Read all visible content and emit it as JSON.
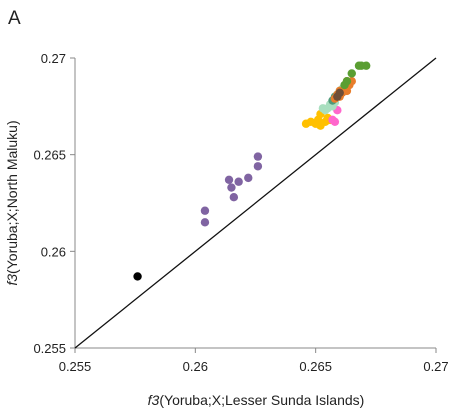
{
  "chart_data": {
    "type": "scatter",
    "panel_label": "A",
    "xlabel": {
      "italic_prefix": "f3",
      "text": "(Yoruba;X;Lesser Sunda Islands)"
    },
    "ylabel": {
      "italic_prefix": "f3",
      "text": "(Yoruba;X;North Maluku)"
    },
    "xlim": [
      0.255,
      0.27
    ],
    "ylim": [
      0.255,
      0.27
    ],
    "x_ticks": [
      "0.255",
      "0.26",
      "0.265",
      "0.27"
    ],
    "y_ticks": [
      "0.255",
      "0.26",
      "0.265",
      "0.27"
    ],
    "diagonal": {
      "from": [
        0.255,
        0.255
      ],
      "to": [
        0.27,
        0.27
      ],
      "color": "#111111"
    },
    "grid": false,
    "legend": "none",
    "series": [
      {
        "color": "#000000",
        "points": [
          [
            0.2576,
            0.2587
          ]
        ]
      },
      {
        "color": "#8064a2",
        "points": [
          [
            0.2604,
            0.2621
          ],
          [
            0.2604,
            0.2615
          ],
          [
            0.2614,
            0.2637
          ],
          [
            0.2615,
            0.2633
          ],
          [
            0.2616,
            0.2628
          ],
          [
            0.2618,
            0.2636
          ],
          [
            0.2622,
            0.2638
          ],
          [
            0.2626,
            0.2644
          ],
          [
            0.2626,
            0.2649
          ]
        ]
      },
      {
        "color": "#ffc000",
        "points": [
          [
            0.2646,
            0.2666
          ],
          [
            0.2648,
            0.2667
          ],
          [
            0.265,
            0.2666
          ],
          [
            0.2651,
            0.2668
          ],
          [
            0.2652,
            0.2665
          ],
          [
            0.2654,
            0.2667
          ],
          [
            0.2652,
            0.2671
          ],
          [
            0.2655,
            0.2669
          ],
          [
            0.2656,
            0.2668
          ]
        ]
      },
      {
        "color": "#ff66cc",
        "points": [
          [
            0.2657,
            0.2668
          ],
          [
            0.2658,
            0.2667
          ],
          [
            0.2659,
            0.2673
          ]
        ]
      },
      {
        "color": "#a9dfbf",
        "points": [
          [
            0.2653,
            0.2674
          ],
          [
            0.2655,
            0.2674
          ],
          [
            0.2654,
            0.2673
          ],
          [
            0.2656,
            0.2676
          ],
          [
            0.2657,
            0.2675
          ],
          [
            0.2658,
            0.2677
          ],
          [
            0.2659,
            0.2681
          ],
          [
            0.266,
            0.2683
          ],
          [
            0.2661,
            0.2684
          ]
        ]
      },
      {
        "color": "#4f9a7a",
        "points": [
          [
            0.2657,
            0.2678
          ],
          [
            0.2658,
            0.268
          ],
          [
            0.2659,
            0.2681
          ],
          [
            0.266,
            0.2681
          ]
        ]
      },
      {
        "color": "#e87d2b",
        "points": [
          [
            0.2658,
            0.2679
          ],
          [
            0.2659,
            0.2681
          ],
          [
            0.266,
            0.268
          ],
          [
            0.266,
            0.2683
          ],
          [
            0.2661,
            0.2682
          ],
          [
            0.2662,
            0.2684
          ],
          [
            0.2663,
            0.2683
          ],
          [
            0.2664,
            0.2686
          ],
          [
            0.2663,
            0.2688
          ],
          [
            0.2665,
            0.2688
          ]
        ]
      },
      {
        "color": "#6f4e37",
        "points": [
          [
            0.2659,
            0.268
          ],
          [
            0.266,
            0.2682
          ]
        ]
      },
      {
        "color": "#5a9e32",
        "points": [
          [
            0.2662,
            0.2686
          ],
          [
            0.2663,
            0.2688
          ],
          [
            0.2665,
            0.2692
          ],
          [
            0.2668,
            0.2696
          ],
          [
            0.2669,
            0.2696
          ],
          [
            0.2671,
            0.2696
          ]
        ]
      }
    ]
  }
}
